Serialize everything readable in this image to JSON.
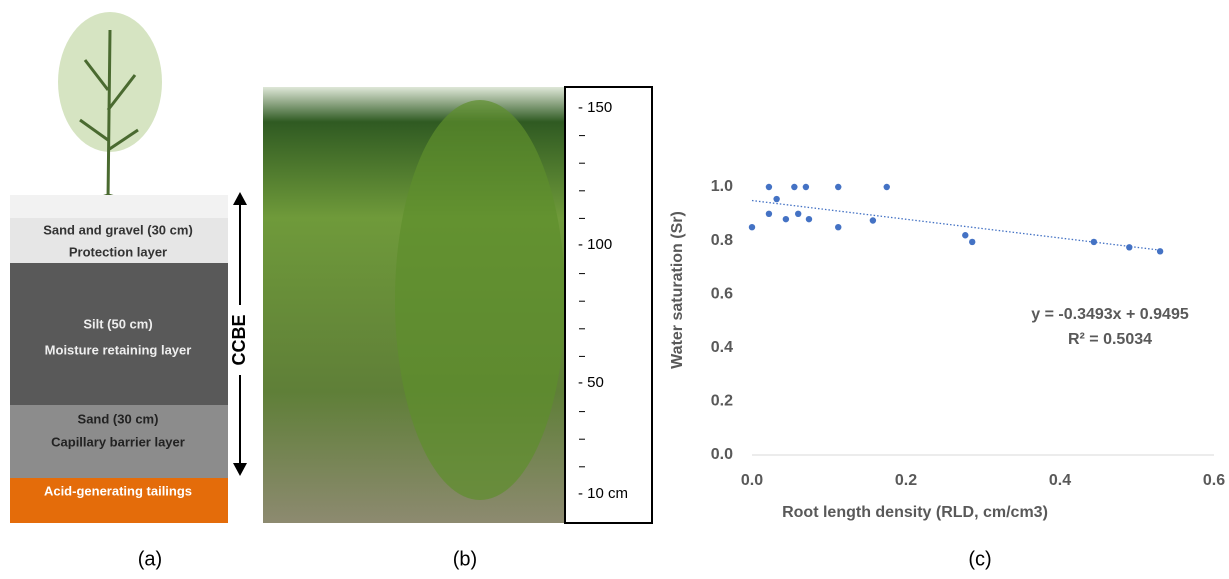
{
  "panel_a": {
    "caption": "(a)",
    "layers": [
      {
        "name": "Sand and gravel (30 cm)",
        "role": "Protection layer"
      },
      {
        "name": "Silt (50 cm)",
        "role": "Moisture retaining layer"
      },
      {
        "name": "Sand (30 cm)",
        "role": "Capillary barrier layer"
      },
      {
        "name": "Acid-generating tailings"
      }
    ],
    "arrow_label": "CCBE"
  },
  "panel_b": {
    "caption": "(b)",
    "scale_labels": [
      "- 150",
      "- 100",
      "- 50",
      "- 10 cm"
    ]
  },
  "chart_data": {
    "type": "scatter",
    "caption": "(c)",
    "x_label": "Root length density (RLD, cm/cm3)",
    "y_label": "Water saturation (Sr)",
    "color": "#4472c4",
    "x": [
      0.0,
      0.022,
      0.022,
      0.032,
      0.044,
      0.055,
      0.06,
      0.07,
      0.074,
      0.112,
      0.112,
      0.157,
      0.175,
      0.277,
      0.286,
      0.444,
      0.49,
      0.53
    ],
    "values": [
      0.85,
      1.0,
      0.9,
      0.955,
      0.88,
      1.0,
      0.9,
      1.0,
      0.88,
      1.0,
      0.85,
      0.875,
      1.0,
      0.82,
      0.795,
      0.795,
      0.775,
      0.76
    ],
    "xlim": [
      0,
      0.6
    ],
    "ylim": [
      0,
      1.0
    ],
    "xticks": [
      {
        "value": 0,
        "label": "0.0"
      },
      0.2,
      0.4,
      0.6
    ],
    "yticks": [
      {
        "value": 0,
        "label": "0.0"
      },
      0.2,
      0.4,
      0.6,
      0.8,
      {
        "value": 1,
        "label": "1.0"
      }
    ],
    "trendline": {
      "slope": -0.3493,
      "intercept": 0.9495,
      "equation": "y = -0.3493x + 0.9495",
      "r_squared": "R² = 0.5034"
    }
  }
}
